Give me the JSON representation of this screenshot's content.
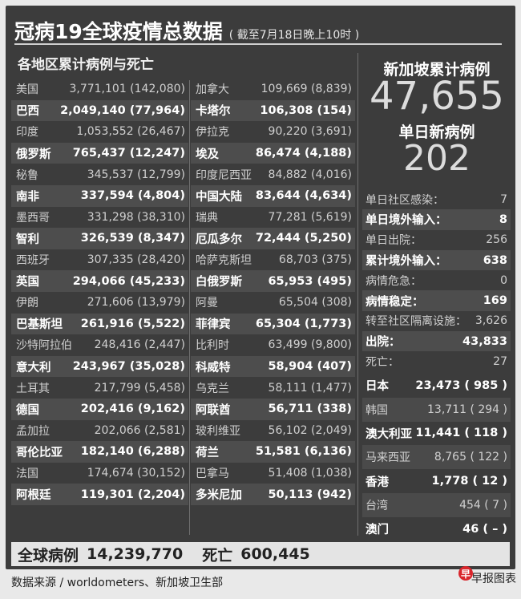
{
  "header": {
    "title": "冠病19全球疫情总数据",
    "subtitle": "( 截至7月18日晚上10时 )"
  },
  "section_title": "各地区累计病例与死亡",
  "left_table": [
    {
      "name": "美国",
      "value": "3,771,101 (142,080)",
      "bold": false
    },
    {
      "name": "巴西",
      "value": "2,049,140 (77,964)",
      "bold": true
    },
    {
      "name": "印度",
      "value": "1,053,552 (26,467)",
      "bold": false
    },
    {
      "name": "俄罗斯",
      "value": "765,437 (12,247)",
      "bold": true
    },
    {
      "name": "秘鲁",
      "value": "345,537 (12,799)",
      "bold": false
    },
    {
      "name": "南非",
      "value": "337,594 (4,804)",
      "bold": true
    },
    {
      "name": "墨西哥",
      "value": "331,298 (38,310)",
      "bold": false
    },
    {
      "name": "智利",
      "value": "326,539 (8,347)",
      "bold": true
    },
    {
      "name": "西班牙",
      "value": "307,335 (28,420)",
      "bold": false
    },
    {
      "name": "英国",
      "value": "294,066 (45,233)",
      "bold": true
    },
    {
      "name": "伊朗",
      "value": "271,606 (13,979)",
      "bold": false
    },
    {
      "name": "巴基斯坦",
      "value": "261,916 (5,522)",
      "bold": true
    },
    {
      "name": "沙特阿拉伯",
      "value": "248,416 (2,447)",
      "bold": false
    },
    {
      "name": "意大利",
      "value": "243,967 (35,028)",
      "bold": true
    },
    {
      "name": "土耳其",
      "value": "217,799 (5,458)",
      "bold": false
    },
    {
      "name": "德国",
      "value": "202,416 (9,162)",
      "bold": true
    },
    {
      "name": "孟加拉",
      "value": "202,066 (2,581)",
      "bold": false
    },
    {
      "name": "哥伦比亚",
      "value": "182,140 (6,288)",
      "bold": true
    },
    {
      "name": "法国",
      "value": "174,674 (30,152)",
      "bold": false
    },
    {
      "name": "阿根廷",
      "value": "119,301 (2,204)",
      "bold": true
    }
  ],
  "right_table": [
    {
      "name": "加拿大",
      "value": "109,669 (8,839)",
      "bold": false
    },
    {
      "name": "卡塔尔",
      "value": "106,308 (154)",
      "bold": true
    },
    {
      "name": "伊拉克",
      "value": "90,220 (3,691)",
      "bold": false
    },
    {
      "name": "埃及",
      "value": "86,474 (4,188)",
      "bold": true
    },
    {
      "name": "印度尼西亚",
      "value": "84,882 (4,016)",
      "bold": false
    },
    {
      "name": "中国大陆",
      "value": "83,644 (4,634)",
      "bold": true
    },
    {
      "name": "瑞典",
      "value": "77,281 (5,619)",
      "bold": false
    },
    {
      "name": "厄瓜多尔",
      "value": "72,444 (5,250)",
      "bold": true
    },
    {
      "name": "哈萨克斯坦",
      "value": "68,703 (375)",
      "bold": false
    },
    {
      "name": "白俄罗斯",
      "value": "65,953 (495)",
      "bold": true
    },
    {
      "name": "阿曼",
      "value": "65,504 (308)",
      "bold": false
    },
    {
      "name": "菲律宾",
      "value": "65,304 (1,773)",
      "bold": true
    },
    {
      "name": "比利时",
      "value": "63,499 (9,800)",
      "bold": false
    },
    {
      "name": "科威特",
      "value": "58,904 (407)",
      "bold": true
    },
    {
      "name": "乌克兰",
      "value": "58,111 (1,477)",
      "bold": false
    },
    {
      "name": "阿联酋",
      "value": "56,711 (338)",
      "bold": true
    },
    {
      "name": "玻利维亚",
      "value": "56,102 (2,049)",
      "bold": false
    },
    {
      "name": "荷兰",
      "value": "51,581 (6,136)",
      "bold": true
    },
    {
      "name": "巴拿马",
      "value": "51,408 (1,038)",
      "bold": false
    },
    {
      "name": "多米尼加",
      "value": "50,113 (942)",
      "bold": true
    }
  ],
  "singapore": {
    "total_label": "新加坡累计病例",
    "total_value": "47,655",
    "new_label": "单日新病例",
    "new_value": "202",
    "stats": [
      {
        "name": "单日社区感染：",
        "value": "7",
        "bold": false
      },
      {
        "name": "单日境外输入：",
        "value": "8",
        "bold": true
      },
      {
        "name": "单日出院：",
        "value": "256",
        "bold": false
      },
      {
        "name": "累计境外输入：",
        "value": "638",
        "bold": true
      },
      {
        "name": "病情危急：",
        "value": "0",
        "bold": false
      },
      {
        "name": "病情稳定：",
        "value": "169",
        "bold": true
      },
      {
        "name": "转至社区隔离设施：",
        "value": "3,626",
        "bold": false
      },
      {
        "name": "出院：",
        "value": "43,833",
        "bold": true
      },
      {
        "name": "死亡：",
        "value": "27",
        "bold": false
      }
    ]
  },
  "asia_table": [
    {
      "name": "日本",
      "value": "23,473 ( 985 )",
      "bold": true
    },
    {
      "name": "韩国",
      "value": "13,711 ( 294 )",
      "bold": false
    },
    {
      "name": "澳大利亚",
      "value": "11,441 ( 118 )",
      "bold": true
    },
    {
      "name": "马来西亚",
      "value": "8,765 ( 122 )",
      "bold": false
    },
    {
      "name": "香港",
      "value": "1,778 ( 12 )",
      "bold": true
    },
    {
      "name": "台湾",
      "value": "454 ( 7 )",
      "bold": false
    },
    {
      "name": "澳门",
      "value": "46 ( – )",
      "bold": true
    }
  ],
  "global": {
    "cases_label": "全球病例",
    "cases_value": "14,239,770",
    "deaths_label": "死亡",
    "deaths_value": "600,445"
  },
  "footer": {
    "source": "数据来源 / worldometers、新加坡卫生部",
    "brand": "早报图表",
    "logo_char": "早"
  }
}
